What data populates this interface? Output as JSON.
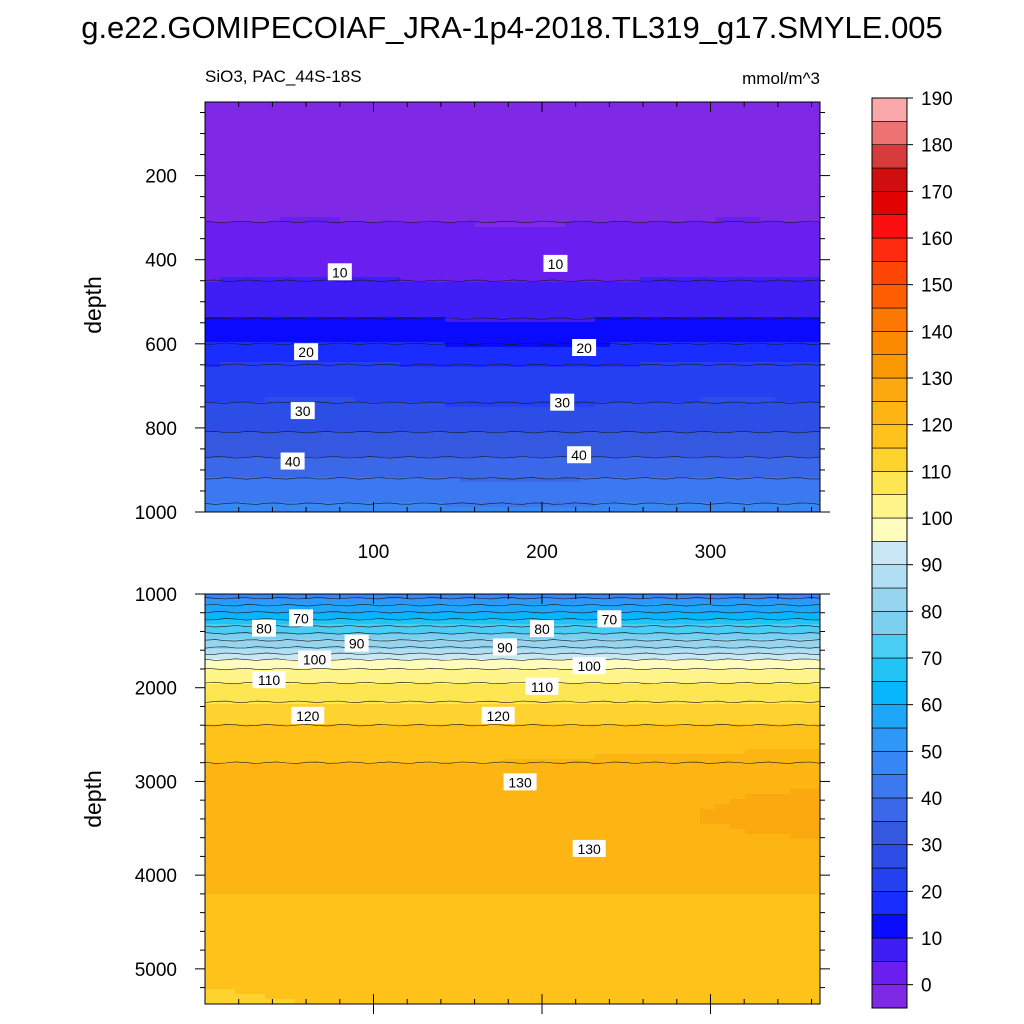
{
  "title": "g.e22.GOMIPECOIAF_JRA-1p4-2018.TL319_g17.SMYLE.005",
  "panel_left_label": "SiO3, PAC_44S-18S",
  "panel_right_label": "mmol/m^3",
  "colorbar": {
    "levels": [
      0,
      5,
      10,
      15,
      20,
      25,
      30,
      35,
      40,
      45,
      50,
      55,
      60,
      65,
      70,
      75,
      80,
      85,
      90,
      95,
      100,
      105,
      110,
      115,
      120,
      125,
      130,
      135,
      140,
      145,
      150,
      155,
      160,
      165,
      170,
      175,
      180,
      185,
      190
    ],
    "colors": [
      "#7f29e6",
      "#6a1ef0",
      "#3e1ef5",
      "#0a0aff",
      "#1a2dff",
      "#2440f0",
      "#2d4ee6",
      "#3558e0",
      "#3a68e8",
      "#3c78ef",
      "#3686f5",
      "#2e98f9",
      "#1ea6fb",
      "#08b6fb",
      "#22c3f5",
      "#49cdf5",
      "#7dcff0",
      "#96d4ef",
      "#b0dff3",
      "#c9e8f6",
      "#fffdbd",
      "#fff58a",
      "#fee552",
      "#fed22f",
      "#ffc21a",
      "#fdb514",
      "#fca80f",
      "#fb9905",
      "#fb8a01",
      "#fd7802",
      "#fe5e01",
      "#fe4505",
      "#ff2b0e",
      "#fe0f0f",
      "#e10202",
      "#cf0f0f",
      "#d73c3c",
      "#ee7373",
      "#f8a8a8"
    ],
    "labels": [
      "0",
      "10",
      "20",
      "30",
      "40",
      "50",
      "60",
      "70",
      "80",
      "90",
      "100",
      "110",
      "120",
      "130",
      "140",
      "150",
      "160",
      "170",
      "180",
      "190"
    ]
  },
  "chart_data": [
    {
      "type": "heatmap",
      "panel": "upper",
      "title": "SiO3, PAC_44S-18S",
      "units": "mmol/m^3",
      "xlabel": "",
      "ylabel": "depth",
      "xlim": [
        0,
        365
      ],
      "ylim": [
        1000,
        25
      ],
      "x_ticks": [
        100,
        200,
        300
      ],
      "y_ticks": [
        200,
        400,
        600,
        800,
        1000
      ],
      "contour_interval": 5,
      "depth_profile": {
        "depth": [
          25,
          245,
          310,
          450,
          490,
          540,
          600,
          650,
          700,
          760,
          810,
          860,
          900,
          940,
          980,
          1000
        ],
        "value": [
          2,
          2,
          5,
          10,
          12,
          15,
          20,
          25,
          28,
          31,
          35,
          39,
          43,
          47,
          50,
          52
        ]
      },
      "contour_labels": [
        {
          "text": "10",
          "x": 80,
          "depth": 430
        },
        {
          "text": "10",
          "x": 208,
          "depth": 410
        },
        {
          "text": "20",
          "x": 60,
          "depth": 620
        },
        {
          "text": "20",
          "x": 225,
          "depth": 610
        },
        {
          "text": "30",
          "x": 58,
          "depth": 760
        },
        {
          "text": "30",
          "x": 212,
          "depth": 740
        },
        {
          "text": "40",
          "x": 52,
          "depth": 880
        },
        {
          "text": "40",
          "x": 222,
          "depth": 865
        }
      ]
    },
    {
      "type": "heatmap",
      "panel": "lower",
      "units": "mmol/m^3",
      "xlabel": "",
      "ylabel": "depth",
      "xlim": [
        0,
        365
      ],
      "ylim": [
        5375,
        1000
      ],
      "x_ticks": [
        100,
        200,
        300
      ],
      "y_ticks": [
        1000,
        2000,
        3000,
        4000,
        5000
      ],
      "depth_profile": {
        "depth": [
          1000,
          1150,
          1300,
          1450,
          1600,
          1700,
          1800,
          1950,
          2150,
          2400,
          2600,
          3000,
          3400,
          3800,
          4200,
          4500,
          5375
        ],
        "value": [
          52,
          62,
          72,
          82,
          92,
          100,
          105,
          110,
          115,
          120,
          124,
          126,
          127,
          127,
          125,
          124,
          122
        ]
      },
      "contour_labels": [
        {
          "text": "70",
          "x": 57,
          "depth": 1260
        },
        {
          "text": "70",
          "x": 240,
          "depth": 1270
        },
        {
          "text": "80",
          "x": 35,
          "depth": 1370
        },
        {
          "text": "80",
          "x": 200,
          "depth": 1375
        },
        {
          "text": "90",
          "x": 90,
          "depth": 1530
        },
        {
          "text": "90",
          "x": 178,
          "depth": 1570
        },
        {
          "text": "100",
          "x": 65,
          "depth": 1700
        },
        {
          "text": "100",
          "x": 228,
          "depth": 1770
        },
        {
          "text": "110",
          "x": 38,
          "depth": 1920
        },
        {
          "text": "110",
          "x": 200,
          "depth": 1990
        },
        {
          "text": "120",
          "x": 61,
          "depth": 2300
        },
        {
          "text": "120",
          "x": 174,
          "depth": 2300
        },
        {
          "text": "130",
          "x": 187,
          "depth": 3010
        },
        {
          "text": "130",
          "x": 228,
          "depth": 3720
        }
      ]
    }
  ]
}
